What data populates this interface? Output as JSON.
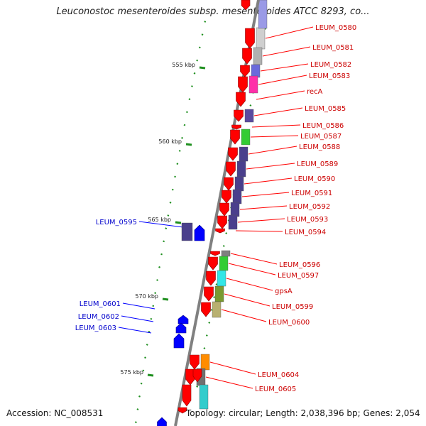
{
  "title": "Leuconostoc mesenteroides subsp. mesenteroides ATCC 8293, co...",
  "footer": {
    "accession": "Accession: NC_008531",
    "topology": "Topology: circular; Length: 2,038,396 bp; Genes: 2,054"
  },
  "colors": {
    "forward_gene": "#ff0000",
    "reverse_gene": "#0000ff",
    "forward_label": "#cc0000",
    "reverse_label": "#0000cc",
    "tick": "#1f8f1f",
    "backbone": "#808080"
  },
  "scale_ticks": [
    "555 kbp",
    "560 kbp",
    "565 kbp",
    "570 kbp",
    "575 kbp"
  ],
  "forward_genes": [
    "LEUM_0580",
    "LEUM_0581",
    "LEUM_0582",
    "LEUM_0583",
    "recA",
    "LEUM_0585",
    "LEUM_0586",
    "LEUM_0587",
    "LEUM_0588",
    "LEUM_0589",
    "LEUM_0590",
    "LEUM_0591",
    "LEUM_0592",
    "LEUM_0593",
    "LEUM_0594",
    "LEUM_0596",
    "LEUM_0597",
    "gpsA",
    "LEUM_0599",
    "LEUM_0600",
    "LEUM_0604",
    "LEUM_0605"
  ],
  "reverse_genes": [
    "LEUM_0595",
    "LEUM_0601",
    "LEUM_0602",
    "LEUM_0603"
  ]
}
